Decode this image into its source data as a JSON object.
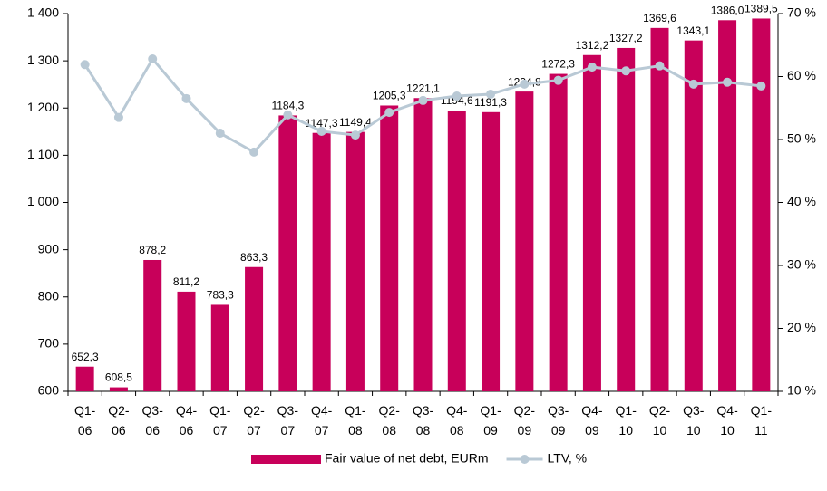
{
  "chart_data": {
    "type": "bar_line",
    "categories": [
      "Q1-06",
      "Q2-06",
      "Q3-06",
      "Q4-06",
      "Q1-07",
      "Q2-07",
      "Q3-07",
      "Q4-07",
      "Q1-08",
      "Q2-08",
      "Q3-08",
      "Q4-08",
      "Q1-09",
      "Q2-09",
      "Q3-09",
      "Q4-09",
      "Q1-10",
      "Q2-10",
      "Q3-10",
      "Q4-10",
      "Q1-11"
    ],
    "series": [
      {
        "name": "Fair value of net debt, EURm",
        "type": "bar",
        "color": "#c8005a",
        "values": [
          652.3,
          608.5,
          878.2,
          811.2,
          783.3,
          863.3,
          1184.3,
          1147.3,
          1149.4,
          1205.3,
          1221.1,
          1194.6,
          1191.3,
          1234.8,
          1272.3,
          1312.2,
          1327.2,
          1369.6,
          1343.1,
          1386.0,
          1389.5
        ],
        "value_labels": [
          "652,3",
          "608,5",
          "878,2",
          "811,2",
          "783,3",
          "863,3",
          "1184,3",
          "1147,3",
          "1149,4",
          "1205,3",
          "1221,1",
          "1194,6",
          "1191,3",
          "1234,8",
          "1272,3",
          "1312,2",
          "1327,2",
          "1369,6",
          "1343,1",
          "1386,0",
          "1389,5"
        ]
      },
      {
        "name": "LTV, %",
        "type": "line",
        "axis": "y2",
        "color": "#b9c9d5",
        "values": [
          61.9,
          53.5,
          62.8,
          56.5,
          51.0,
          48.0,
          53.9,
          51.3,
          50.7,
          54.3,
          56.2,
          56.9,
          57.2,
          58.8,
          59.4,
          61.5,
          60.9,
          61.7,
          58.8,
          59.1,
          58.5
        ]
      }
    ],
    "ylim": [
      600,
      1400
    ],
    "yticks": [
      600,
      700,
      800,
      900,
      {
        "value": 1000,
        "label": "1 000"
      },
      {
        "value": 1100,
        "label": "1 100"
      },
      {
        "value": 1200,
        "label": "1 200"
      },
      {
        "value": 1300,
        "label": "1 300"
      },
      {
        "value": 1400,
        "label": "1 400"
      }
    ],
    "y2lim": [
      10,
      70
    ],
    "y2ticks": [
      {
        "value": 10,
        "label": "10 %"
      },
      {
        "value": 20,
        "label": "20 %"
      },
      {
        "value": 30,
        "label": "30 %"
      },
      {
        "value": 40,
        "label": "40 %"
      },
      {
        "value": 50,
        "label": "50 %"
      },
      {
        "value": 60,
        "label": "60 %"
      },
      {
        "value": 70,
        "label": "70 %"
      }
    ],
    "grid": false,
    "legend": "bottom"
  }
}
